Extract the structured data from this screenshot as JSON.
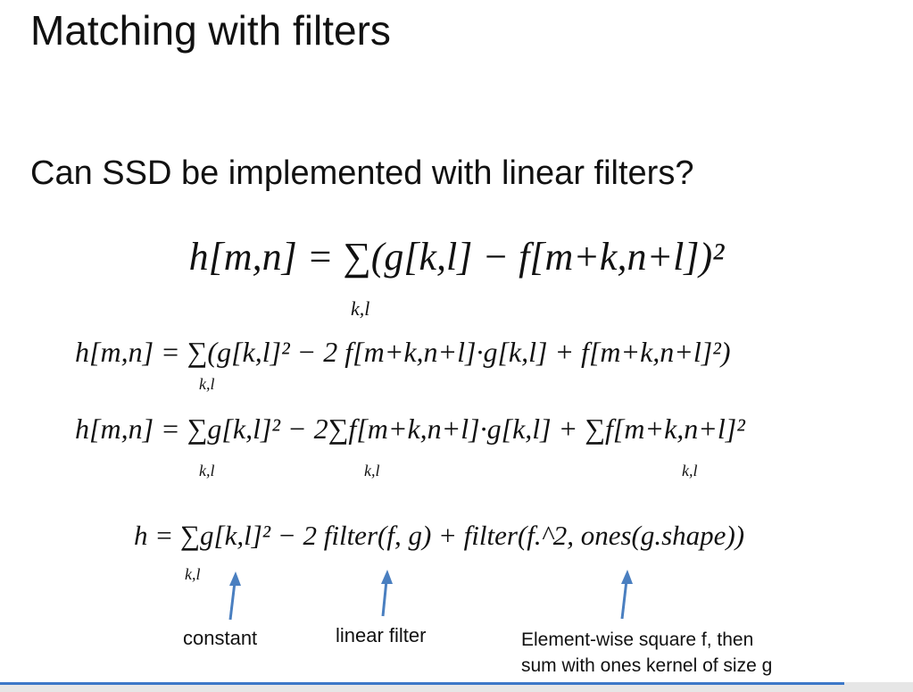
{
  "slide": {
    "title": "Matching with filters",
    "subtitle": "Can SSD be implemented with linear filters?"
  },
  "equations": {
    "eq1": "h[m,n] = ∑(g[k,l] − f[m+k,n+l])²",
    "eq2": "h[m,n] = ∑(g[k,l]² − 2 f[m+k,n+l]·g[k,l] + f[m+k,n+l]²)",
    "eq3": "h[m,n] = ∑g[k,l]² − 2∑f[m+k,n+l]·g[k,l] + ∑f[m+k,n+l]²",
    "eq4": "h = ∑g[k,l]² − 2 filter(f, g) + filter(f.^2, ones(g.shape))",
    "sum_index": "k,l"
  },
  "annotations": {
    "constant": "constant",
    "linear_filter": "linear filter",
    "elementwise_line1": "Element-wise square f, then",
    "elementwise_line2": "sum with ones kernel of size g"
  },
  "colors": {
    "arrow": "#4a7fc0",
    "accent_bar": "#3c78c8"
  }
}
